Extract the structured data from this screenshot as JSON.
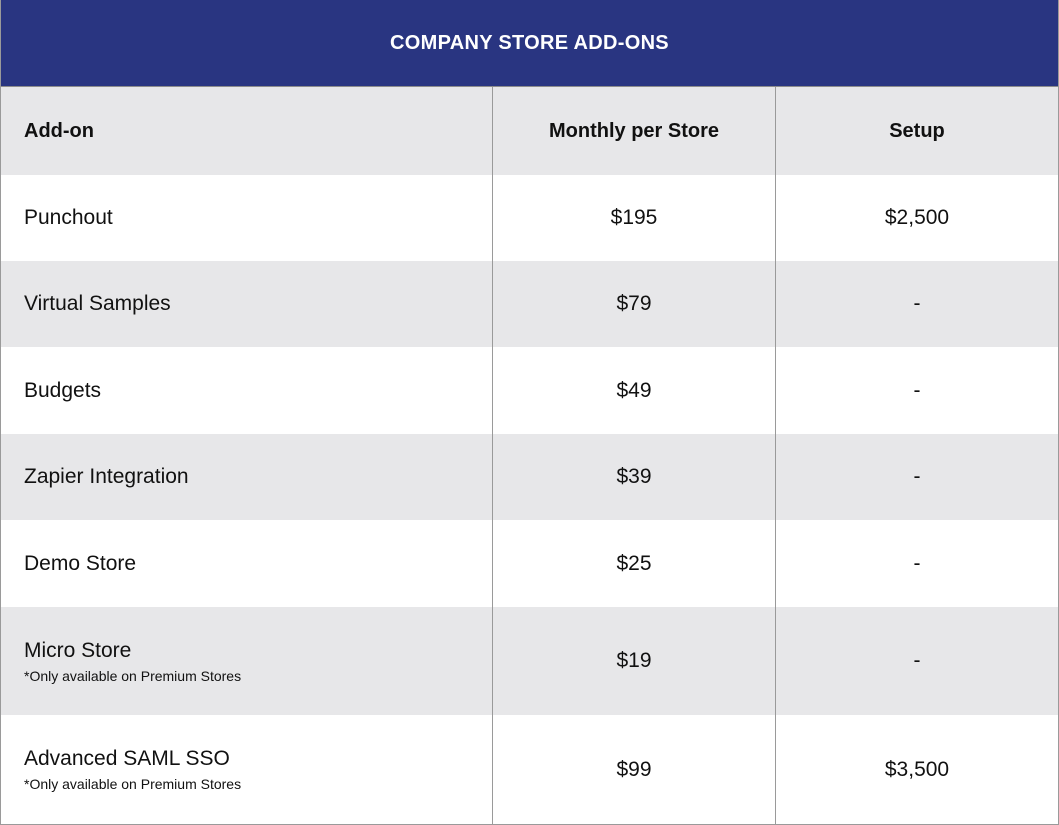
{
  "table": {
    "title": "COMPANY STORE ADD-ONS",
    "headers": [
      "Add-on",
      "Monthly per Store",
      "Setup"
    ],
    "rows": [
      {
        "name": "Punchout",
        "note": "",
        "monthly": "$195",
        "setup": "$2,500"
      },
      {
        "name": "Virtual Samples",
        "note": "",
        "monthly": "$79",
        "setup": "-"
      },
      {
        "name": "Budgets",
        "note": "",
        "monthly": "$49",
        "setup": "-"
      },
      {
        "name": "Zapier Integration",
        "note": "",
        "monthly": "$39",
        "setup": "-"
      },
      {
        "name": "Demo Store",
        "note": "",
        "monthly": "$25",
        "setup": "-"
      },
      {
        "name": "Micro Store",
        "note": "*Only available on Premium Stores",
        "monthly": "$19",
        "setup": "-"
      },
      {
        "name": "Advanced SAML SSO",
        "note": "*Only available on Premium Stores",
        "monthly": "$99",
        "setup": "$3,500"
      }
    ]
  }
}
